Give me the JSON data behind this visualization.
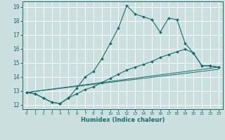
{
  "xlabel": "Humidex (Indice chaleur)",
  "xlim": [
    -0.5,
    23.5
  ],
  "ylim": [
    11.7,
    19.4
  ],
  "yticks": [
    12,
    13,
    14,
    15,
    16,
    17,
    18,
    19
  ],
  "xticks": [
    0,
    1,
    2,
    3,
    4,
    5,
    6,
    7,
    8,
    9,
    10,
    11,
    12,
    13,
    14,
    15,
    16,
    17,
    18,
    19,
    20,
    21,
    22,
    23
  ],
  "bg_color": "#cde0e0",
  "grid_color": "#ffffff",
  "line_color": "#1a6b6b",
  "line1_x": [
    0,
    1,
    2,
    3,
    4,
    5,
    6,
    7,
    8,
    9,
    10,
    11,
    12,
    13,
    14,
    15,
    16,
    17,
    18,
    19,
    20,
    21,
    22,
    23
  ],
  "line1_y": [
    12.9,
    12.8,
    12.5,
    12.2,
    12.1,
    12.5,
    13.2,
    14.0,
    14.4,
    15.3,
    16.4,
    17.5,
    19.1,
    18.5,
    18.3,
    18.1,
    17.2,
    18.2,
    18.1,
    16.4,
    15.7,
    14.8,
    14.8,
    14.7
  ],
  "line2_x": [
    0,
    1,
    2,
    3,
    4,
    5,
    6,
    7,
    8,
    9,
    10,
    11,
    12,
    13,
    14,
    15,
    16,
    17,
    18,
    19,
    20,
    21,
    22,
    23
  ],
  "line2_y": [
    12.9,
    12.8,
    12.5,
    12.2,
    12.1,
    12.5,
    12.8,
    13.1,
    13.3,
    13.6,
    13.9,
    14.2,
    14.5,
    14.7,
    14.9,
    15.1,
    15.4,
    15.6,
    15.8,
    16.0,
    15.7,
    14.8,
    14.8,
    14.7
  ],
  "line3_x": [
    0,
    23
  ],
  "line3_y": [
    12.9,
    14.7
  ],
  "line4_x": [
    0,
    23
  ],
  "line4_y": [
    12.9,
    14.55
  ]
}
